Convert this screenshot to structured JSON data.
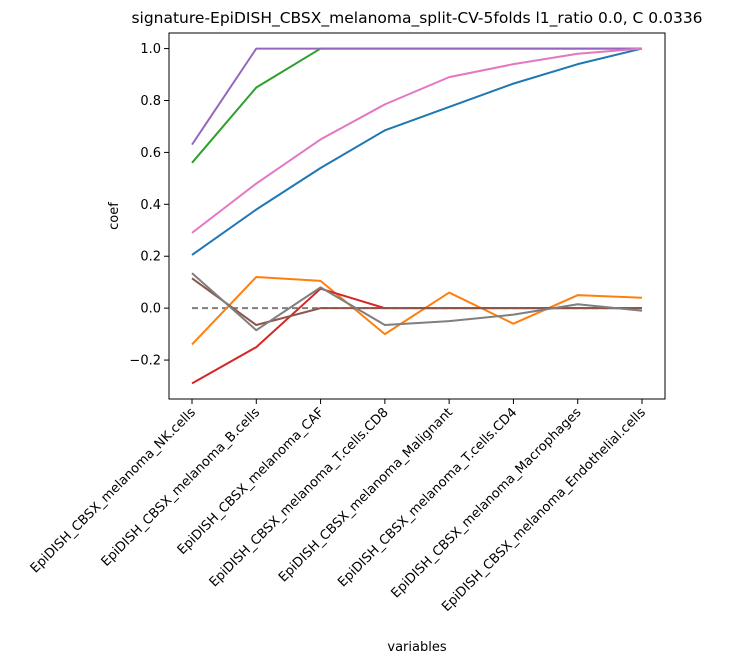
{
  "chart_data": {
    "type": "line",
    "title": "signature-EpiDISH_CBSX_melanoma_split-CV-5folds l1_ratio 0.0, C 0.0336",
    "xlabel": "variables",
    "ylabel": "coef",
    "ylim": [
      -0.35,
      1.06
    ],
    "yticks": [
      -0.2,
      0.0,
      0.2,
      0.4,
      0.6,
      0.8,
      1.0
    ],
    "ytick_labels": [
      "−0.2",
      "0.0",
      "0.2",
      "0.4",
      "0.6",
      "0.8",
      "1.0"
    ],
    "grid": false,
    "categories": [
      "EpiDISH_CBSX_melanoma_NK.cells",
      "EpiDISH_CBSX_melanoma_B.cells",
      "EpiDISH_CBSX_melanoma_CAF",
      "EpiDISH_CBSX_melanoma_T.cells.CD8",
      "EpiDISH_CBSX_melanoma_Malignant",
      "EpiDISH_CBSX_melanoma_T.cells.CD4",
      "EpiDISH_CBSX_melanoma_Macrophages",
      "EpiDISH_CBSX_melanoma_Endothelial.cells"
    ],
    "series": [
      {
        "color": "#1f77b4",
        "values": [
          0.205,
          0.38,
          0.54,
          0.685,
          0.775,
          0.865,
          0.94,
          1.0
        ]
      },
      {
        "color": "#ff7f0e",
        "values": [
          -0.14,
          0.12,
          0.105,
          -0.1,
          0.06,
          -0.06,
          0.05,
          0.04
        ]
      },
      {
        "color": "#2ca02c",
        "values": [
          0.56,
          0.85,
          1.0,
          1.0,
          1.0,
          1.0,
          1.0,
          1.0
        ]
      },
      {
        "color": "#d62728",
        "values": [
          -0.29,
          -0.15,
          0.075,
          0.0,
          0.0,
          0.0,
          0.0,
          0.0
        ]
      },
      {
        "color": "#9467bd",
        "values": [
          0.63,
          1.0,
          1.0,
          1.0,
          1.0,
          1.0,
          1.0,
          1.0
        ]
      },
      {
        "color": "#8c564b",
        "values": [
          0.115,
          -0.065,
          0.0,
          0.0,
          0.0,
          0.0,
          0.0,
          0.0
        ]
      },
      {
        "color": "#e377c2",
        "values": [
          0.29,
          0.48,
          0.65,
          0.785,
          0.89,
          0.94,
          0.98,
          1.0
        ]
      },
      {
        "color": "#7f7f7f",
        "values": [
          0.135,
          -0.085,
          0.08,
          -0.065,
          -0.05,
          -0.025,
          0.015,
          -0.01
        ]
      }
    ],
    "reference_line": {
      "y": 0.0,
      "color": "#7f7f7f",
      "style": "dashed"
    }
  }
}
